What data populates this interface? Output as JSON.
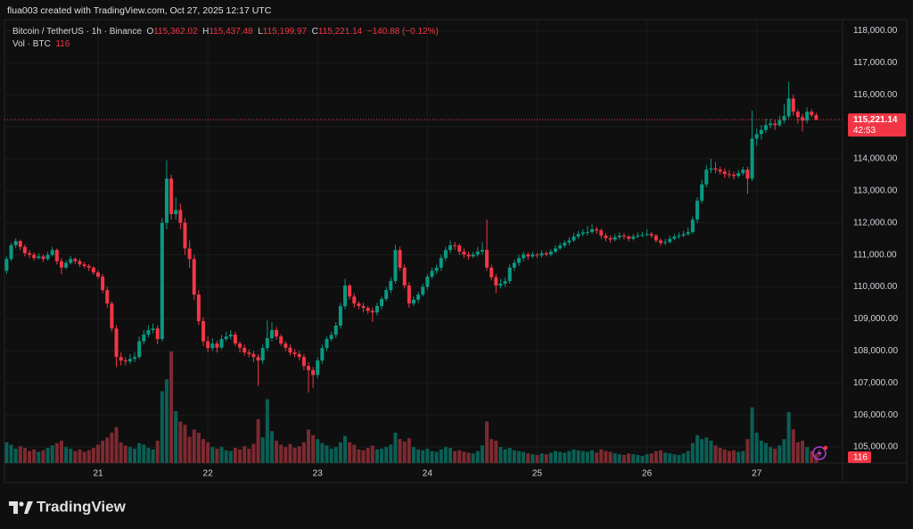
{
  "chart_data": {
    "type": "candlestick",
    "credit": "flua003 created with TradingView.com, Oct 27, 2025 12:17 UTC",
    "symbol": "Bitcoin / TetherUS · 1h · Binance",
    "ohlc_keys": [
      "O",
      "H",
      "L",
      "C"
    ],
    "ohlc_labels": [
      "115,362.02",
      "115,437.48",
      "115,199.97",
      "115,221.14"
    ],
    "change": {
      "value": -140.88,
      "label": "−140.88"
    },
    "change_percent": {
      "value": -0.12,
      "label": "(−0.12%)"
    },
    "volume_label": "Vol · BTC",
    "countdown": "42:53",
    "logo": "TradingView",
    "up_color": "#089981",
    "down_color": "#f23645",
    "up_volume_color": "#0b5f55",
    "down_volume_color": "#7c2a31",
    "grid": true,
    "ylim": [
      104500,
      118400
    ],
    "yticks": [
      {
        "value": 105000,
        "label": "105,000.00"
      },
      {
        "value": 106000,
        "label": "106,000.00"
      },
      {
        "value": 107000,
        "label": "107,000.00"
      },
      {
        "value": 108000,
        "label": "108,000.00"
      },
      {
        "value": 109000,
        "label": "109,000.00"
      },
      {
        "value": 110000,
        "label": "110,000.00"
      },
      {
        "value": 111000,
        "label": "111,000.00"
      },
      {
        "value": 112000,
        "label": "112,000.00"
      },
      {
        "value": 113000,
        "label": "113,000.00"
      },
      {
        "value": 114000,
        "label": "114,000.00"
      },
      {
        "value": 115000,
        "label": "115,000.00"
      },
      {
        "value": 116000,
        "label": "116,000.00"
      },
      {
        "value": 117000,
        "label": "117,000.00"
      },
      {
        "value": 118000,
        "label": "118,000.00"
      }
    ],
    "xticks": [
      {
        "value": 20,
        "label": "21"
      },
      {
        "value": 44,
        "label": "22"
      },
      {
        "value": 68,
        "label": "23"
      },
      {
        "value": 92,
        "label": "24"
      },
      {
        "value": 116,
        "label": "25"
      },
      {
        "value": 140,
        "label": "26"
      },
      {
        "value": 164,
        "label": "27"
      }
    ],
    "candles": [
      [
        110500,
        110950,
        110400,
        110870,
        260
      ],
      [
        110870,
        111380,
        110800,
        111300,
        230
      ],
      [
        111300,
        111520,
        111200,
        111430,
        180
      ],
      [
        111430,
        111480,
        111150,
        111250,
        210
      ],
      [
        111250,
        111320,
        110950,
        111050,
        190
      ],
      [
        111050,
        111150,
        110900,
        111000,
        150
      ],
      [
        111000,
        111080,
        110820,
        110900,
        170
      ],
      [
        110900,
        111050,
        110850,
        110950,
        140
      ],
      [
        110950,
        111020,
        110780,
        110870,
        160
      ],
      [
        110870,
        111100,
        110820,
        111000,
        190
      ],
      [
        111000,
        111250,
        110950,
        111150,
        220
      ],
      [
        111150,
        111200,
        110700,
        110800,
        250
      ],
      [
        110800,
        110900,
        110400,
        110600,
        280
      ],
      [
        110600,
        110830,
        110550,
        110750,
        200
      ],
      [
        110750,
        110960,
        110700,
        110870,
        180
      ],
      [
        110870,
        110920,
        110720,
        110800,
        150
      ],
      [
        110800,
        110880,
        110620,
        110700,
        170
      ],
      [
        110700,
        110780,
        110580,
        110650,
        140
      ],
      [
        110650,
        110720,
        110500,
        110600,
        160
      ],
      [
        110600,
        110650,
        110380,
        110450,
        190
      ],
      [
        110450,
        110520,
        110250,
        110320,
        230
      ],
      [
        110320,
        110400,
        109800,
        109900,
        280
      ],
      [
        109900,
        110000,
        109350,
        109480,
        320
      ],
      [
        109480,
        109550,
        108600,
        108700,
        380
      ],
      [
        108700,
        108800,
        107500,
        107810,
        450
      ],
      [
        107810,
        107950,
        107550,
        107700,
        260
      ],
      [
        107700,
        107800,
        107550,
        107670,
        220
      ],
      [
        107670,
        107900,
        107600,
        107750,
        200
      ],
      [
        107750,
        107950,
        107650,
        107810,
        180
      ],
      [
        107810,
        108450,
        107750,
        108300,
        250
      ],
      [
        108300,
        108650,
        108200,
        108510,
        230
      ],
      [
        108510,
        108800,
        108420,
        108650,
        190
      ],
      [
        108650,
        108850,
        108550,
        108700,
        170
      ],
      [
        108700,
        108800,
        108200,
        108370,
        280
      ],
      [
        108370,
        112150,
        108300,
        112000,
        900
      ],
      [
        112000,
        113950,
        111800,
        113380,
        1050
      ],
      [
        113380,
        113500,
        112100,
        112270,
        1400
      ],
      [
        112270,
        112800,
        112100,
        112400,
        650
      ],
      [
        112400,
        112600,
        111800,
        112000,
        520
      ],
      [
        112000,
        112150,
        111000,
        111200,
        480
      ],
      [
        111200,
        111450,
        110600,
        110870,
        330
      ],
      [
        110870,
        111000,
        109600,
        109760,
        420
      ],
      [
        109760,
        109900,
        108800,
        108930,
        380
      ],
      [
        108930,
        109050,
        108150,
        108300,
        300
      ],
      [
        108300,
        108450,
        107950,
        108090,
        260
      ],
      [
        108090,
        108400,
        108000,
        108230,
        200
      ],
      [
        108230,
        108320,
        107950,
        108100,
        180
      ],
      [
        108100,
        108500,
        108050,
        108370,
        200
      ],
      [
        108370,
        108600,
        108300,
        108450,
        160
      ],
      [
        108450,
        108650,
        108350,
        108510,
        150
      ],
      [
        108510,
        108600,
        108150,
        108230,
        190
      ],
      [
        108230,
        108300,
        107950,
        108100,
        170
      ],
      [
        108100,
        108200,
        107850,
        107950,
        210
      ],
      [
        107950,
        108050,
        107800,
        107900,
        180
      ],
      [
        107900,
        108000,
        107650,
        107810,
        240
      ],
      [
        107810,
        107900,
        106900,
        107700,
        550
      ],
      [
        107700,
        108200,
        107600,
        108090,
        320
      ],
      [
        108090,
        108950,
        108000,
        108400,
        800
      ],
      [
        108400,
        108900,
        108300,
        108650,
        400
      ],
      [
        108650,
        108750,
        108350,
        108450,
        280
      ],
      [
        108450,
        108520,
        108150,
        108230,
        230
      ],
      [
        108230,
        108300,
        108000,
        108100,
        200
      ],
      [
        108100,
        108200,
        107850,
        107950,
        240
      ],
      [
        107950,
        108050,
        107800,
        107900,
        190
      ],
      [
        107900,
        108000,
        107700,
        107810,
        210
      ],
      [
        107810,
        107900,
        107400,
        107530,
        260
      ],
      [
        107530,
        107650,
        106700,
        107400,
        420
      ],
      [
        107400,
        107500,
        106850,
        107250,
        350
      ],
      [
        107250,
        107800,
        107150,
        107700,
        300
      ],
      [
        107700,
        108200,
        107600,
        108090,
        250
      ],
      [
        108090,
        108450,
        108000,
        108370,
        220
      ],
      [
        108370,
        108600,
        108300,
        108500,
        180
      ],
      [
        108500,
        108900,
        108400,
        108790,
        200
      ],
      [
        108790,
        109500,
        108700,
        109400,
        260
      ],
      [
        109400,
        110250,
        109300,
        110040,
        340
      ],
      [
        110040,
        110100,
        109600,
        109700,
        260
      ],
      [
        109700,
        109800,
        109350,
        109480,
        230
      ],
      [
        109480,
        109550,
        109300,
        109400,
        170
      ],
      [
        109400,
        109500,
        109200,
        109340,
        160
      ],
      [
        109340,
        109400,
        109150,
        109250,
        190
      ],
      [
        109250,
        109350,
        108900,
        109200,
        220
      ],
      [
        109200,
        109500,
        109100,
        109400,
        170
      ],
      [
        109400,
        109700,
        109300,
        109620,
        180
      ],
      [
        109620,
        110000,
        109550,
        109900,
        200
      ],
      [
        109900,
        110300,
        109800,
        110180,
        230
      ],
      [
        110180,
        111300,
        110100,
        111150,
        380
      ],
      [
        111150,
        111250,
        110500,
        110600,
        300
      ],
      [
        110600,
        110700,
        109950,
        110040,
        270
      ],
      [
        110040,
        110150,
        109350,
        109480,
        310
      ],
      [
        109480,
        109700,
        109400,
        109600,
        200
      ],
      [
        109600,
        109850,
        109500,
        109760,
        170
      ],
      [
        109760,
        110100,
        109700,
        110000,
        160
      ],
      [
        110000,
        110400,
        109900,
        110320,
        180
      ],
      [
        110320,
        110600,
        110250,
        110500,
        150
      ],
      [
        110500,
        110700,
        110400,
        110600,
        140
      ],
      [
        110600,
        111000,
        110500,
        110900,
        170
      ],
      [
        110900,
        111250,
        110800,
        111150,
        200
      ],
      [
        111150,
        111450,
        111050,
        111300,
        190
      ],
      [
        111300,
        111400,
        111150,
        111290,
        150
      ],
      [
        111290,
        111350,
        111000,
        111100,
        160
      ],
      [
        111100,
        111200,
        110900,
        111010,
        140
      ],
      [
        111010,
        111100,
        110850,
        110950,
        130
      ],
      [
        110950,
        111100,
        110900,
        111010,
        120
      ],
      [
        111010,
        111250,
        110950,
        111100,
        150
      ],
      [
        111100,
        111400,
        111000,
        111150,
        220
      ],
      [
        111150,
        112100,
        110500,
        110600,
        520
      ],
      [
        110600,
        110700,
        110200,
        110300,
        300
      ],
      [
        110300,
        110400,
        109800,
        110040,
        280
      ],
      [
        110040,
        110250,
        109950,
        110100,
        200
      ],
      [
        110100,
        110300,
        110000,
        110180,
        170
      ],
      [
        110180,
        110700,
        110100,
        110600,
        190
      ],
      [
        110600,
        110850,
        110500,
        110750,
        160
      ],
      [
        110750,
        111000,
        110650,
        110900,
        150
      ],
      [
        110900,
        111100,
        110800,
        111010,
        140
      ],
      [
        111010,
        111080,
        110850,
        110950,
        120
      ],
      [
        110950,
        111100,
        110900,
        111010,
        110
      ],
      [
        111010,
        111060,
        110900,
        110980,
        100
      ],
      [
        110980,
        111150,
        110920,
        111050,
        120
      ],
      [
        111050,
        111120,
        110950,
        111010,
        110
      ],
      [
        111010,
        111180,
        110960,
        111100,
        130
      ],
      [
        111100,
        111300,
        111050,
        111200,
        150
      ],
      [
        111200,
        111380,
        111150,
        111290,
        140
      ],
      [
        111290,
        111450,
        111220,
        111380,
        130
      ],
      [
        111380,
        111550,
        111300,
        111450,
        150
      ],
      [
        111450,
        111680,
        111400,
        111570,
        170
      ],
      [
        111570,
        111750,
        111500,
        111650,
        160
      ],
      [
        111650,
        111800,
        111580,
        111700,
        150
      ],
      [
        111700,
        111900,
        111600,
        111710,
        140
      ],
      [
        111710,
        111950,
        111650,
        111800,
        160
      ],
      [
        111800,
        111880,
        111650,
        111760,
        130
      ],
      [
        111760,
        111820,
        111500,
        111600,
        170
      ],
      [
        111600,
        111680,
        111420,
        111520,
        150
      ],
      [
        111520,
        111600,
        111380,
        111480,
        140
      ],
      [
        111480,
        111650,
        111420,
        111550,
        120
      ],
      [
        111550,
        111700,
        111480,
        111600,
        110
      ],
      [
        111600,
        111680,
        111480,
        111570,
        100
      ],
      [
        111570,
        111620,
        111420,
        111500,
        120
      ],
      [
        111500,
        111650,
        111450,
        111570,
        110
      ],
      [
        111570,
        111700,
        111520,
        111600,
        100
      ],
      [
        111600,
        111720,
        111550,
        111620,
        90
      ],
      [
        111620,
        111800,
        111580,
        111650,
        110
      ],
      [
        111650,
        111720,
        111520,
        111600,
        120
      ],
      [
        111600,
        111650,
        111380,
        111450,
        150
      ],
      [
        111450,
        111520,
        111280,
        111370,
        160
      ],
      [
        111370,
        111500,
        111300,
        111400,
        130
      ],
      [
        111400,
        111600,
        111350,
        111500,
        120
      ],
      [
        111500,
        111650,
        111450,
        111570,
        110
      ],
      [
        111570,
        111700,
        111500,
        111600,
        100
      ],
      [
        111600,
        111750,
        111550,
        111650,
        120
      ],
      [
        111650,
        111850,
        111600,
        111710,
        150
      ],
      [
        111710,
        112200,
        111650,
        112100,
        250
      ],
      [
        112100,
        112800,
        112000,
        112690,
        350
      ],
      [
        112690,
        113350,
        112600,
        113200,
        300
      ],
      [
        113200,
        113800,
        113100,
        113660,
        320
      ],
      [
        113660,
        114000,
        113550,
        113700,
        280
      ],
      [
        113700,
        113900,
        113550,
        113660,
        220
      ],
      [
        113660,
        113750,
        113500,
        113600,
        190
      ],
      [
        113600,
        113700,
        113400,
        113520,
        170
      ],
      [
        113520,
        113650,
        113400,
        113500,
        150
      ],
      [
        113500,
        113600,
        113350,
        113460,
        160
      ],
      [
        113460,
        113650,
        113400,
        113550,
        140
      ],
      [
        113550,
        113750,
        113480,
        113660,
        150
      ],
      [
        113660,
        113750,
        112900,
        113380,
        300
      ],
      [
        113380,
        115500,
        113300,
        114630,
        700
      ],
      [
        114630,
        114950,
        114400,
        114770,
        380
      ],
      [
        114770,
        115050,
        114600,
        114900,
        280
      ],
      [
        114900,
        115250,
        114800,
        115050,
        250
      ],
      [
        115050,
        115250,
        114950,
        115100,
        200
      ],
      [
        115100,
        115200,
        114900,
        115050,
        180
      ],
      [
        115050,
        115350,
        115000,
        115200,
        220
      ],
      [
        115200,
        115700,
        115100,
        115330,
        300
      ],
      [
        115330,
        116400,
        115250,
        115880,
        640
      ],
      [
        115880,
        116000,
        115350,
        115470,
        420
      ],
      [
        115470,
        115550,
        115100,
        115300,
        260
      ],
      [
        115300,
        115400,
        114850,
        115190,
        280
      ],
      [
        115190,
        115600,
        115100,
        115470,
        200
      ],
      [
        115470,
        115550,
        115300,
        115362.02,
        150
      ],
      [
        115362.02,
        115437.48,
        115199.97,
        115221.14,
        116
      ]
    ]
  }
}
